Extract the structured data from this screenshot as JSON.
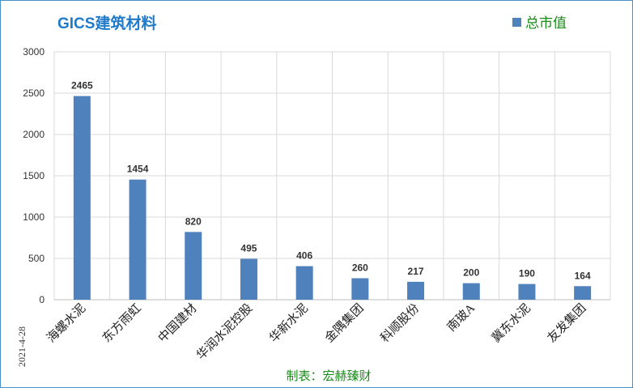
{
  "chart_data": {
    "type": "bar",
    "title": "GICS建筑材料",
    "categories": [
      "海螺水泥",
      "东方雨虹",
      "中国建材",
      "华润水泥控股",
      "华新水泥",
      "金隅集团",
      "科顺股份",
      "南玻A",
      "冀东水泥",
      "友发集团"
    ],
    "series": [
      {
        "name": "总市值",
        "values": [
          2465,
          1454,
          820,
          495,
          406,
          260,
          217,
          200,
          190,
          164
        ]
      }
    ],
    "ylim": [
      0,
      3000
    ],
    "yticks": [
      0,
      500,
      1000,
      1500,
      2000,
      2500,
      3000
    ],
    "grid": true,
    "legend_position": "top-right",
    "date_label": "2021-4-28",
    "footer": "制表：宏赫臻财",
    "colors": {
      "bar": "#4f81bd",
      "title": "#1f7ac9",
      "legend_text": "#1a8a1a",
      "footer_text": "#1a8a1a",
      "grid": "#d9d9d9",
      "frame": "#4a90c8"
    }
  }
}
